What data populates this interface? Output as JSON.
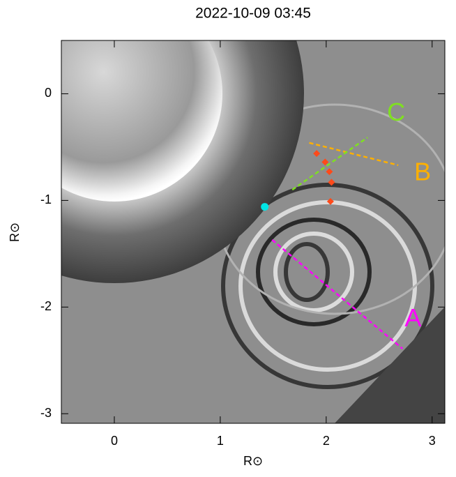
{
  "chart_data": {
    "type": "image",
    "title": "2022-10-09 03:45",
    "xlabel": "R⊙",
    "ylabel": "R⊙",
    "xlim": [
      -0.5,
      3.12
    ],
    "ylim": [
      -3.09,
      0.5
    ],
    "xticks": [
      0,
      1,
      2,
      3
    ],
    "yticks": [
      0,
      -1,
      -2,
      -3
    ],
    "lines": [
      {
        "name": "A",
        "color": "#ff00ff",
        "x": [
          1.49,
          2.72
        ],
        "y": [
          -1.37,
          -2.39
        ],
        "label_x": 2.82,
        "label_y": -2.12
      },
      {
        "name": "B",
        "color": "#ffb000",
        "x": [
          1.84,
          2.68
        ],
        "y": [
          -0.46,
          -0.67
        ],
        "label_x": 2.91,
        "label_y": -0.75
      },
      {
        "name": "C",
        "color": "#7fe020",
        "x": [
          1.68,
          2.39
        ],
        "y": [
          -0.9,
          -0.41
        ],
        "label_x": 2.66,
        "label_y": -0.19
      }
    ],
    "points": {
      "color": "#ff4a1a",
      "x": [
        1.91,
        1.99,
        2.03,
        2.05,
        2.04
      ],
      "y": [
        -0.56,
        -0.64,
        -0.73,
        -0.83,
        -1.01
      ]
    },
    "marker": {
      "color": "#00e5e5",
      "x": 1.42,
      "y": -1.06
    }
  }
}
